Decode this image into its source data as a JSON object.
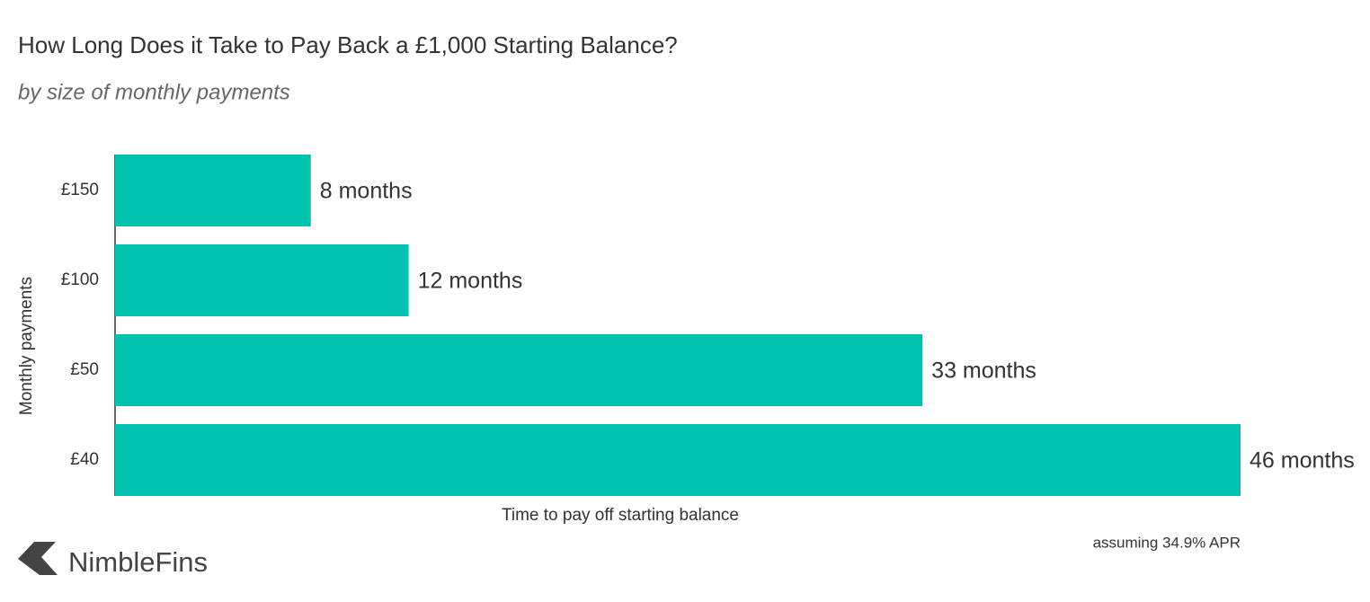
{
  "chart_data": {
    "type": "bar",
    "orientation": "horizontal",
    "title": "How Long Does it Take to Pay Back a £1,000 Starting Balance?",
    "subtitle": "by size of monthly payments",
    "y_axis_label": "Monthly payments",
    "x_axis_label": "Time to pay off starting balance",
    "note": "assuming 34.9% APR",
    "brand": "NimbleFins",
    "categories": [
      "£150",
      "£100",
      "£50",
      "£40"
    ],
    "values": [
      8,
      12,
      33,
      46
    ],
    "value_labels": [
      "8 months",
      "12 months",
      "33 months",
      "46 months"
    ],
    "color": "#00c2ae",
    "xlim": [
      0,
      46
    ]
  }
}
